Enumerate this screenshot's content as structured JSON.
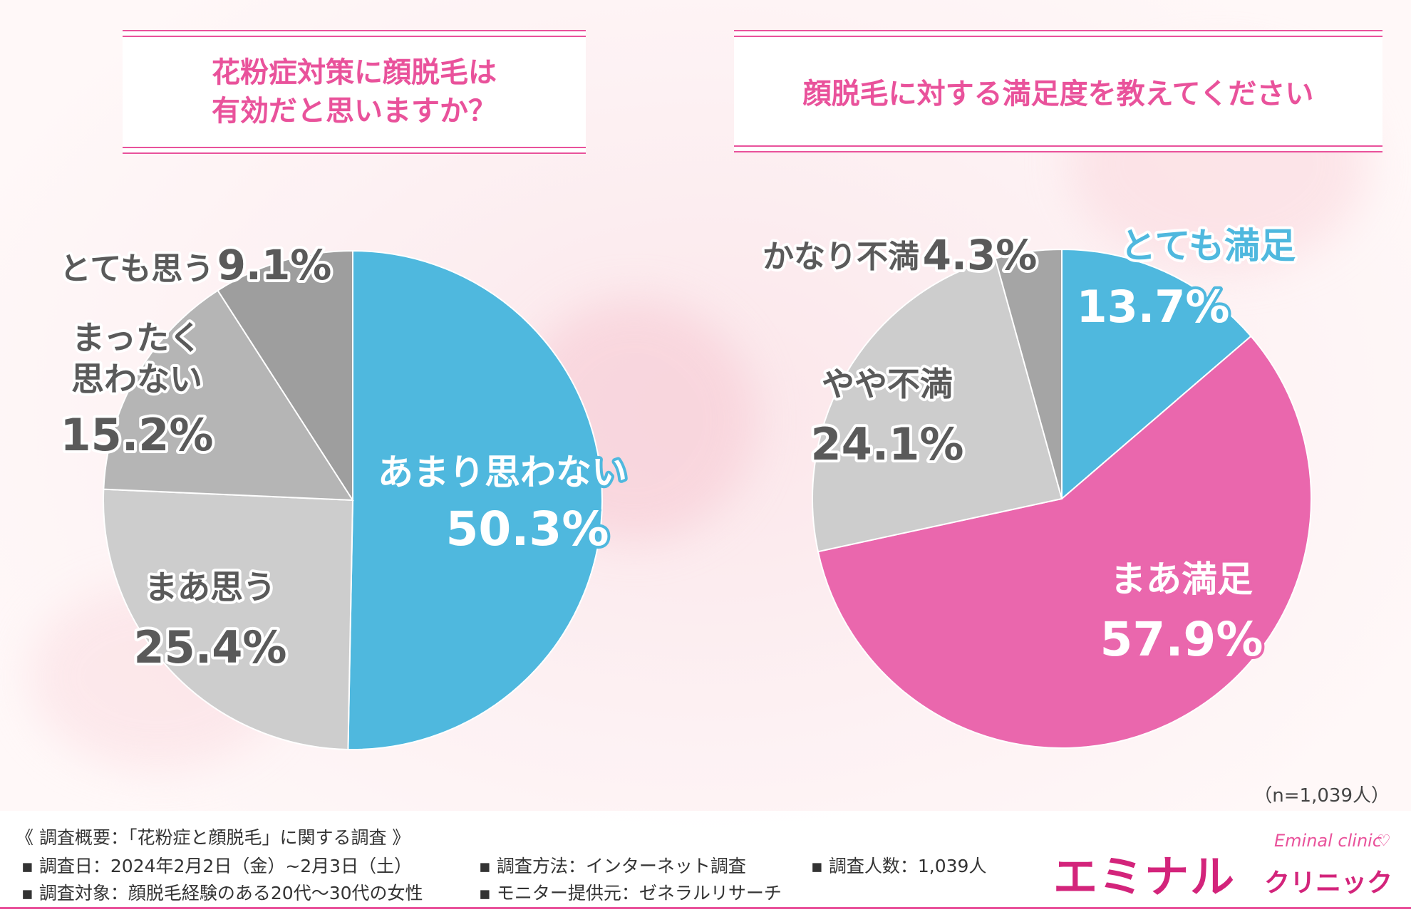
{
  "colors": {
    "accent_pink": "#e9529b",
    "blue": "#4fb8de",
    "pink_slice": "#ea67ad",
    "gray_light": "#cdcdcd",
    "gray_mid": "#b5b5b5",
    "gray_dark": "#9e9e9e",
    "brand": "#d3247b"
  },
  "sample_size": "（n=1,039人）",
  "chart_data": [
    {
      "type": "pie",
      "title": "花粉症対策に顔脱毛は有効だと思いますか？",
      "title_lines": [
        "花粉症対策に顔脱毛は",
        "有効だと思いますか？"
      ],
      "slices": [
        {
          "label": "あまり思わない",
          "value": 50.3,
          "value_text": "50.3%",
          "color": "#4fb8de"
        },
        {
          "label": "まあ思う",
          "value": 25.4,
          "value_text": "25.4%",
          "color": "#cdcdcd"
        },
        {
          "label": "まったく思わない",
          "label_lines": [
            "まったく",
            "思わない"
          ],
          "value": 15.2,
          "value_text": "15.2%",
          "color": "#b5b5b5"
        },
        {
          "label": "とても思う",
          "value": 9.1,
          "value_text": "9.1%",
          "color": "#9e9e9e"
        }
      ]
    },
    {
      "type": "pie",
      "title": "顔脱毛に対する満足度を教えてください",
      "slices": [
        {
          "label": "とても満足",
          "value": 13.7,
          "value_text": "13.7%",
          "color": "#4fb8de"
        },
        {
          "label": "まあ満足",
          "value": 57.9,
          "value_text": "57.9%",
          "color": "#ea67ad"
        },
        {
          "label": "やや不満",
          "value": 24.1,
          "value_text": "24.1%",
          "color": "#cdcdcd"
        },
        {
          "label": "かなり不満",
          "value": 4.3,
          "value_text": "4.3%",
          "color": "#a5a5a5"
        }
      ]
    }
  ],
  "survey": {
    "heading": "《 調査概要：「花粉症と顔脱毛」に関する調査 》",
    "date": "調査日：2024年2月2日（金）~2月3日（土）",
    "target": "調査対象：顔脱毛経験のある20代～30代の女性",
    "method": "調査方法：インターネット調査",
    "provider": "モニター提供元：ゼネラルリサーチ",
    "count": "調査人数：1,039人"
  },
  "logo": {
    "main": "エミナル",
    "sub": "クリニック",
    "en": "Eminal clinic"
  }
}
